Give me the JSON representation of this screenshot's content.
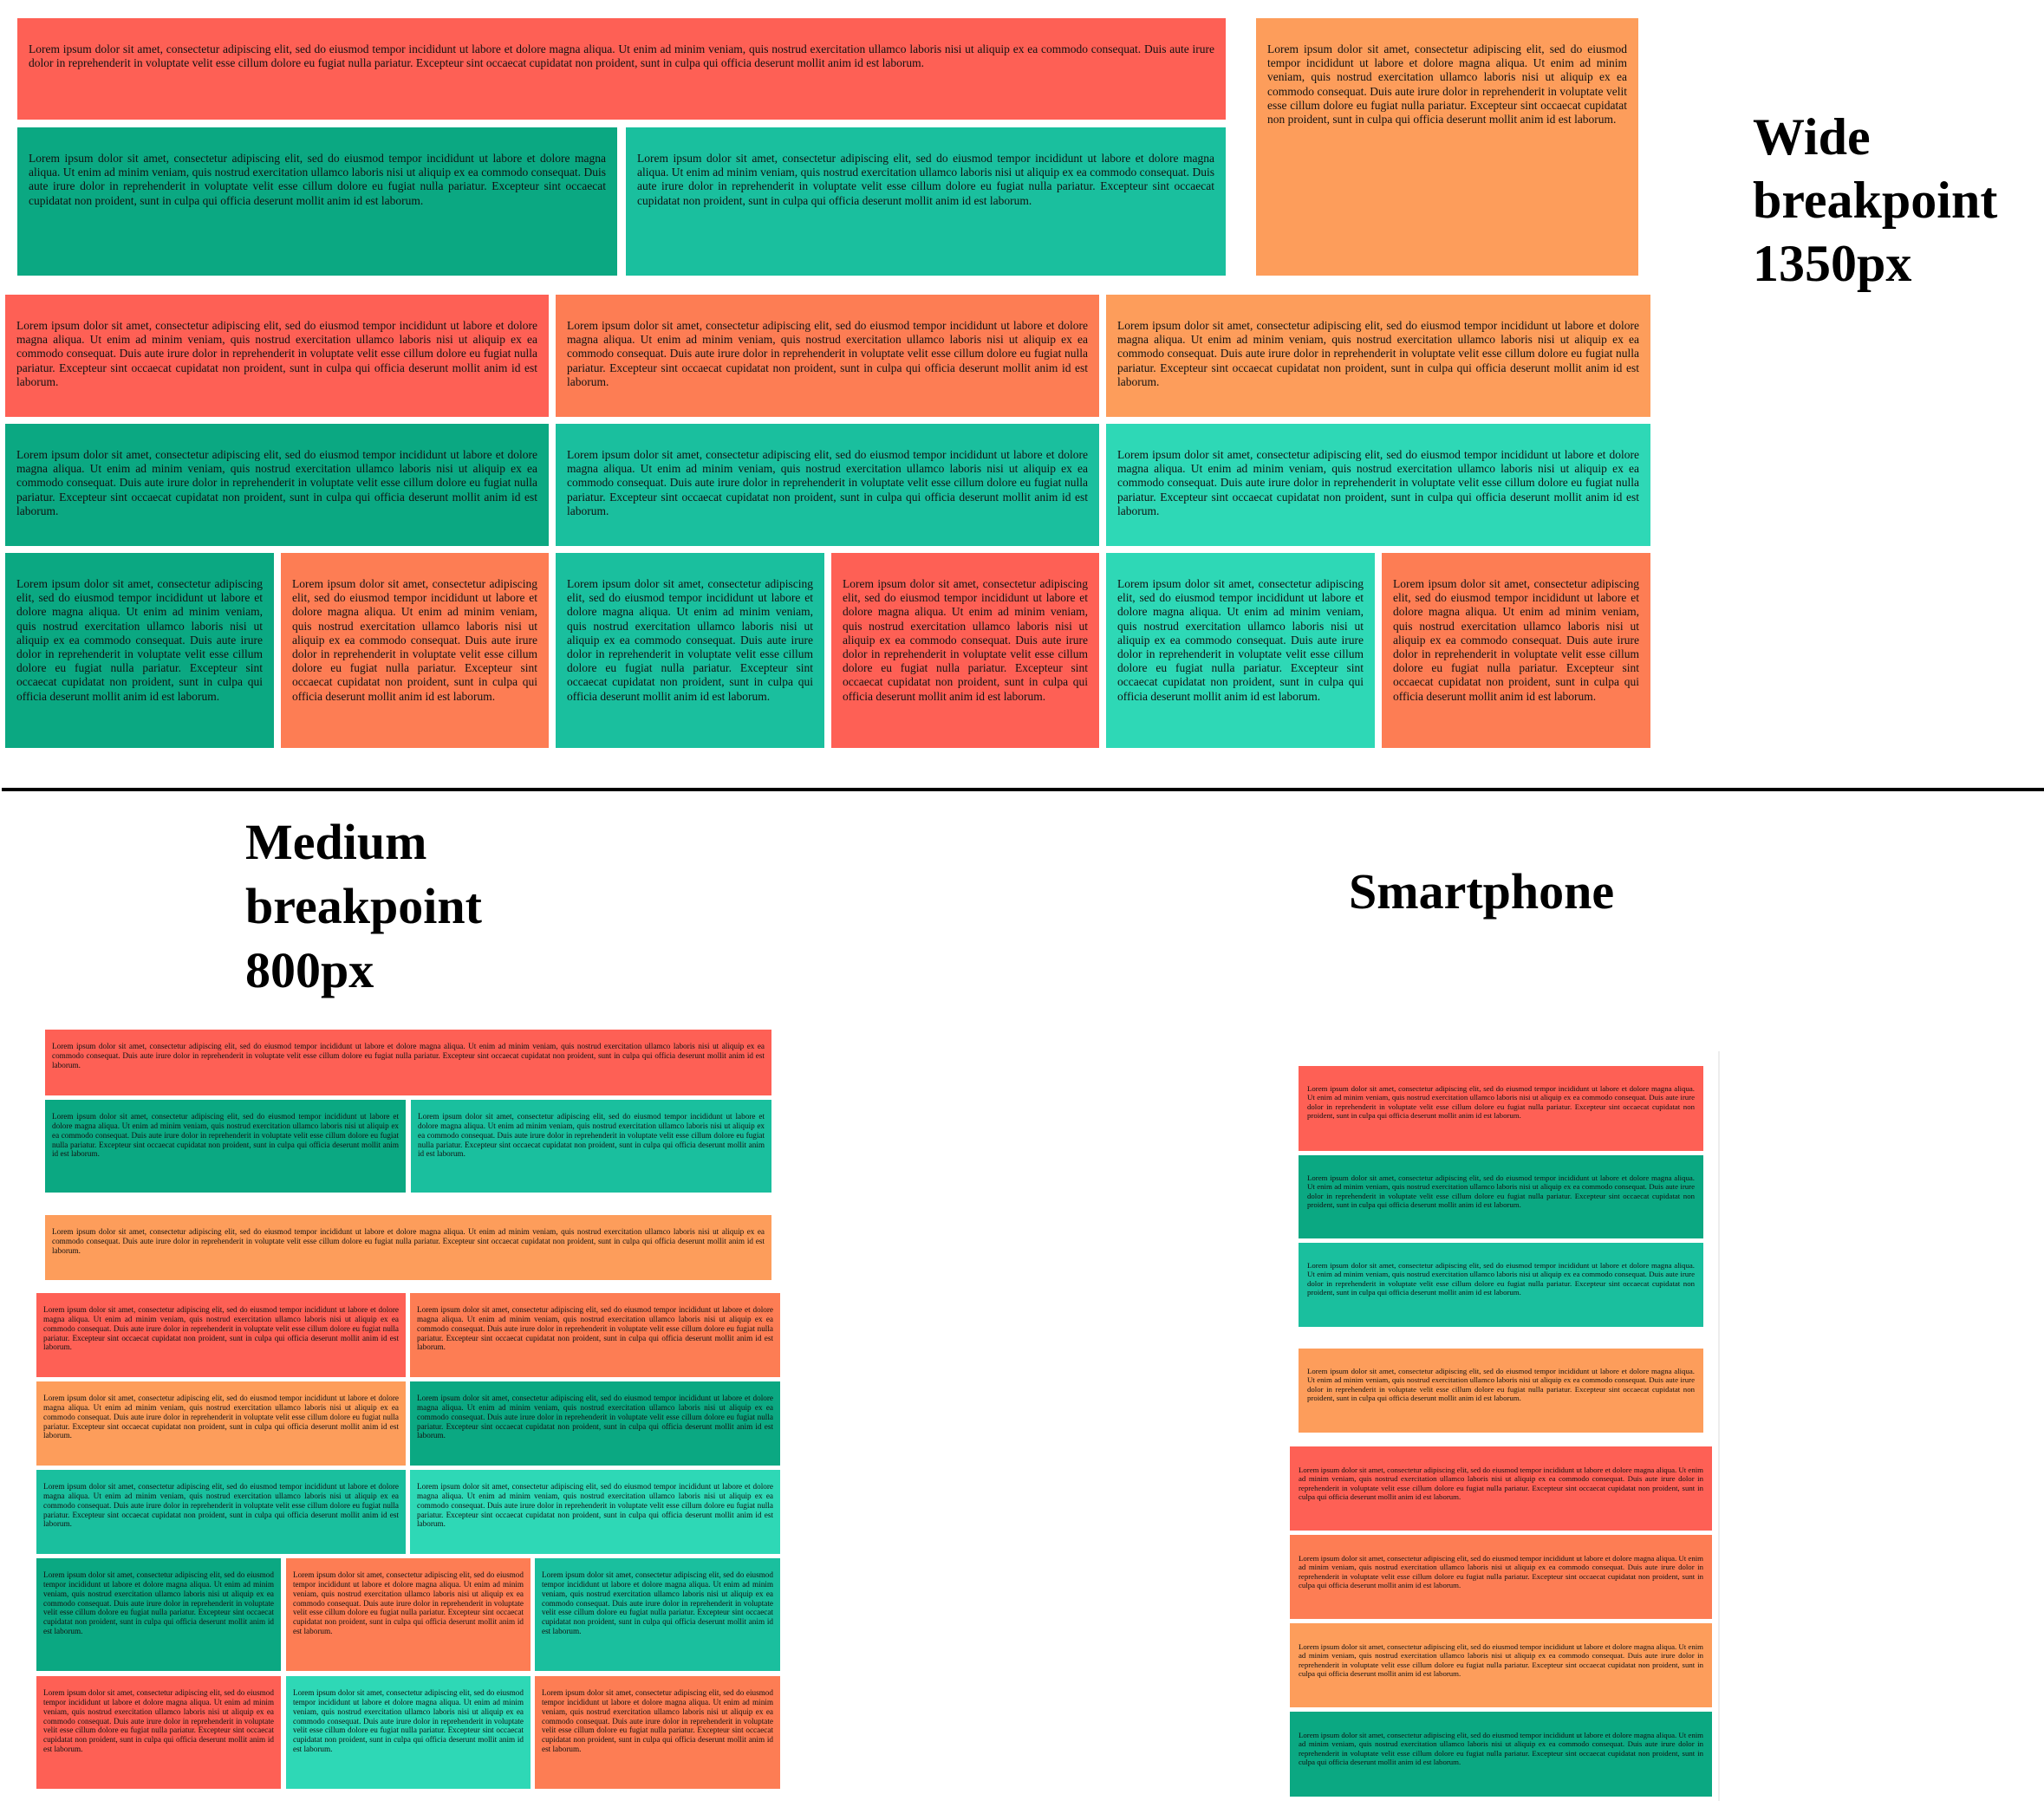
{
  "lorem": "Lorem ipsum dolor sit amet, consectetur adipiscing elit, sed do eiusmod tempor incididunt ut labore et dolore magna aliqua. Ut enim ad minim veniam, quis nostrud exercitation ullamco laboris nisi ut aliquip ex ea commodo consequat. Duis aute irure dolor in reprehenderit in voluptate velit esse cillum dolore eu fugiat nulla pariatur. Excepteur sint occaecat cupidatat non proident, sunt in culpa qui officia deserunt mollit anim id est laborum.",
  "headings": {
    "wide": "Wide breakpoint 1350px",
    "medium": "Medium breakpoint 800px",
    "smartphone": "Smartphone"
  },
  "colors": {
    "red": "#fe6055",
    "coral": "#fd7d54",
    "orange": "#fd9d5b",
    "dark_green": "#0ba882",
    "teal": "#1abf9e",
    "light_teal": "#2ed8b6"
  }
}
